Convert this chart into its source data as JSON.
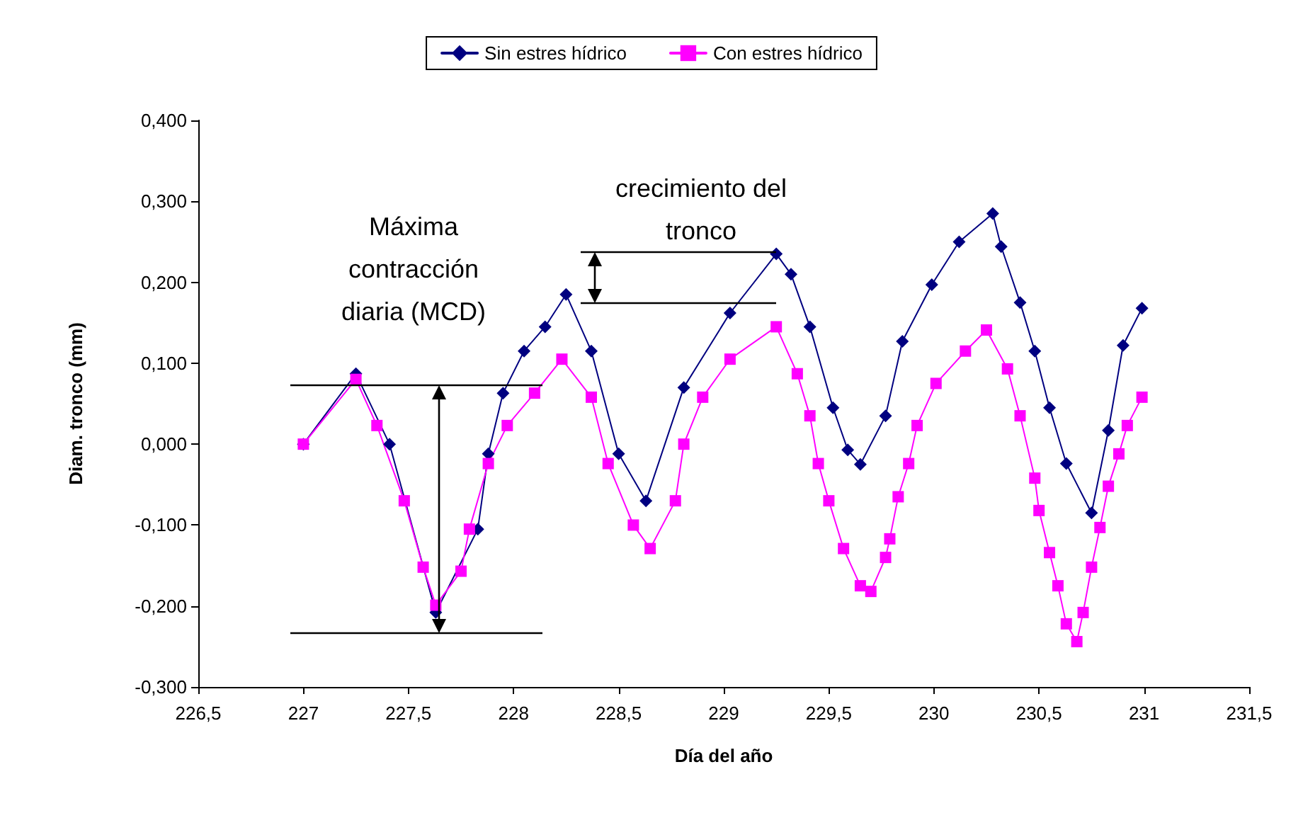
{
  "chart_data": {
    "type": "line",
    "xlabel": "Día del año",
    "ylabel": "Diam. tronco (mm)",
    "xlim": [
      226.5,
      231.5
    ],
    "ylim": [
      -0.3,
      0.4
    ],
    "xticks": [
      {
        "value": 226.5,
        "label": "226,5"
      },
      {
        "value": 227,
        "label": "227"
      },
      {
        "value": 227.5,
        "label": "227,5"
      },
      {
        "value": 228,
        "label": "228"
      },
      {
        "value": 228.5,
        "label": "228,5"
      },
      {
        "value": 229,
        "label": "229"
      },
      {
        "value": 229.5,
        "label": "229,5"
      },
      {
        "value": 230,
        "label": "230"
      },
      {
        "value": 230.5,
        "label": "230,5"
      },
      {
        "value": 231,
        "label": "231"
      },
      {
        "value": 231.5,
        "label": "231,5"
      }
    ],
    "yticks": [
      {
        "value": -0.3,
        "label": "-0,300"
      },
      {
        "value": -0.2,
        "label": "-0,200"
      },
      {
        "value": -0.1,
        "label": "-0,100"
      },
      {
        "value": 0,
        "label": "0,000"
      },
      {
        "value": 0.1,
        "label": "0,100"
      },
      {
        "value": 0.2,
        "label": "0,200"
      },
      {
        "value": 0.3,
        "label": "0,300"
      },
      {
        "value": 0.4,
        "label": "0,400"
      }
    ],
    "grid": false,
    "legend": "top",
    "series": [
      {
        "name": "Sin estres hídrico",
        "color": "#000080",
        "marker": "diamond",
        "x": [
          227.0,
          227.25,
          227.41,
          227.63,
          227.83,
          227.88,
          227.95,
          228.05,
          228.15,
          228.25,
          228.37,
          228.5,
          228.63,
          228.81,
          229.03,
          229.25,
          229.32,
          229.41,
          229.52,
          229.59,
          229.65,
          229.77,
          229.85,
          229.99,
          230.12,
          230.28,
          230.32,
          230.41,
          230.48,
          230.55,
          230.63,
          230.75,
          230.83,
          230.9,
          230.99
        ],
        "values": [
          0.0,
          0.087,
          0.0,
          -0.208,
          -0.105,
          -0.012,
          0.063,
          0.115,
          0.145,
          0.185,
          0.115,
          -0.012,
          -0.07,
          0.07,
          0.162,
          0.235,
          0.21,
          0.145,
          0.045,
          -0.007,
          -0.025,
          0.035,
          0.127,
          0.197,
          0.25,
          0.285,
          0.244,
          0.175,
          0.115,
          0.045,
          -0.024,
          -0.085,
          0.017,
          0.122,
          0.168
        ]
      },
      {
        "name": "Con estres hídrico",
        "color": "#ff00ff",
        "marker": "square",
        "x": [
          227.0,
          227.25,
          227.35,
          227.48,
          227.57,
          227.63,
          227.75,
          227.79,
          227.88,
          227.97,
          228.1,
          228.23,
          228.37,
          228.45,
          228.57,
          228.65,
          228.77,
          228.81,
          228.9,
          229.03,
          229.25,
          229.35,
          229.41,
          229.45,
          229.5,
          229.57,
          229.65,
          229.7,
          229.77,
          229.79,
          229.83,
          229.88,
          229.92,
          230.01,
          230.15,
          230.25,
          230.35,
          230.41,
          230.48,
          230.5,
          230.55,
          230.59,
          230.63,
          230.68,
          230.71,
          230.75,
          230.79,
          230.83,
          230.88,
          230.92,
          230.99
        ],
        "values": [
          0.0,
          0.08,
          0.023,
          -0.07,
          -0.152,
          -0.199,
          -0.157,
          -0.105,
          -0.024,
          0.023,
          0.063,
          0.105,
          0.058,
          -0.024,
          -0.1,
          -0.129,
          -0.07,
          0.0,
          0.058,
          0.105,
          0.145,
          0.087,
          0.035,
          -0.024,
          -0.07,
          -0.129,
          -0.175,
          -0.182,
          -0.14,
          -0.117,
          -0.065,
          -0.024,
          0.023,
          0.075,
          0.115,
          0.141,
          0.093,
          0.035,
          -0.042,
          -0.082,
          -0.134,
          -0.175,
          -0.222,
          -0.244,
          -0.208,
          -0.152,
          -0.103,
          -0.052,
          -0.012,
          0.023,
          0.058
        ]
      }
    ],
    "annotations": [
      "Máxima\ncontracción\ndiaria (MCD)",
      "crecimiento del\ntronco"
    ]
  }
}
